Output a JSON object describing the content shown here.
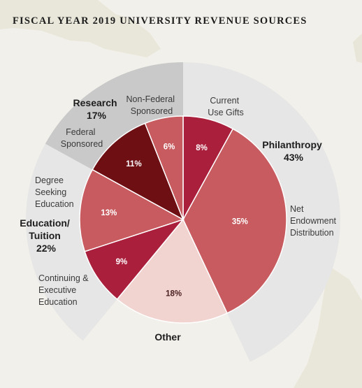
{
  "title": "FISCAL YEAR 2019 UNIVERSITY REVENUE SOURCES",
  "chart_data": {
    "type": "pie",
    "title": "FISCAL YEAR 2019 UNIVERSITY REVENUE SOURCES",
    "slices": [
      {
        "label": "Current Use Gifts",
        "value": 8,
        "value_label": "8%",
        "color": "#a91f3c",
        "text_color": "#ffffff"
      },
      {
        "label": "Net Endowment Distribution",
        "value": 35,
        "value_label": "35%",
        "color": "#c75b5f",
        "text_color": "#ffffff"
      },
      {
        "label": "Other",
        "value": 18,
        "value_label": "18%",
        "color": "#f1d3cf",
        "text_color": "#4a2020"
      },
      {
        "label": "Continuing & Executive Education",
        "value": 9,
        "value_label": "9%",
        "color": "#a91f3c",
        "text_color": "#ffffff"
      },
      {
        "label": "Degree Seeking Education",
        "value": 13,
        "value_label": "13%",
        "color": "#c75b5f",
        "text_color": "#ffffff"
      },
      {
        "label": "Federal Sponsored",
        "value": 11,
        "value_label": "11%",
        "color": "#6e0f14",
        "text_color": "#ffffff"
      },
      {
        "label": "Non-Federal Sponsored",
        "value": 6,
        "value_label": "6%",
        "color": "#c75b5f",
        "text_color": "#ffffff"
      }
    ],
    "groups": [
      {
        "label": "Philanthropy",
        "value": 43,
        "value_label": "43%",
        "color": "#e6e6e6"
      },
      {
        "label": "Other",
        "value": 18,
        "value_label": "",
        "color": "none"
      },
      {
        "label": "Education/ Tuition",
        "value": 22,
        "value_label": "22%",
        "color": "#e6e6e6"
      },
      {
        "label": "Research",
        "value": 17,
        "value_label": "17%",
        "color": "#c9c9c9"
      }
    ],
    "start_angle_deg": 0,
    "direction": "clockwise"
  },
  "colors": {
    "background": "#f2f0ea"
  }
}
